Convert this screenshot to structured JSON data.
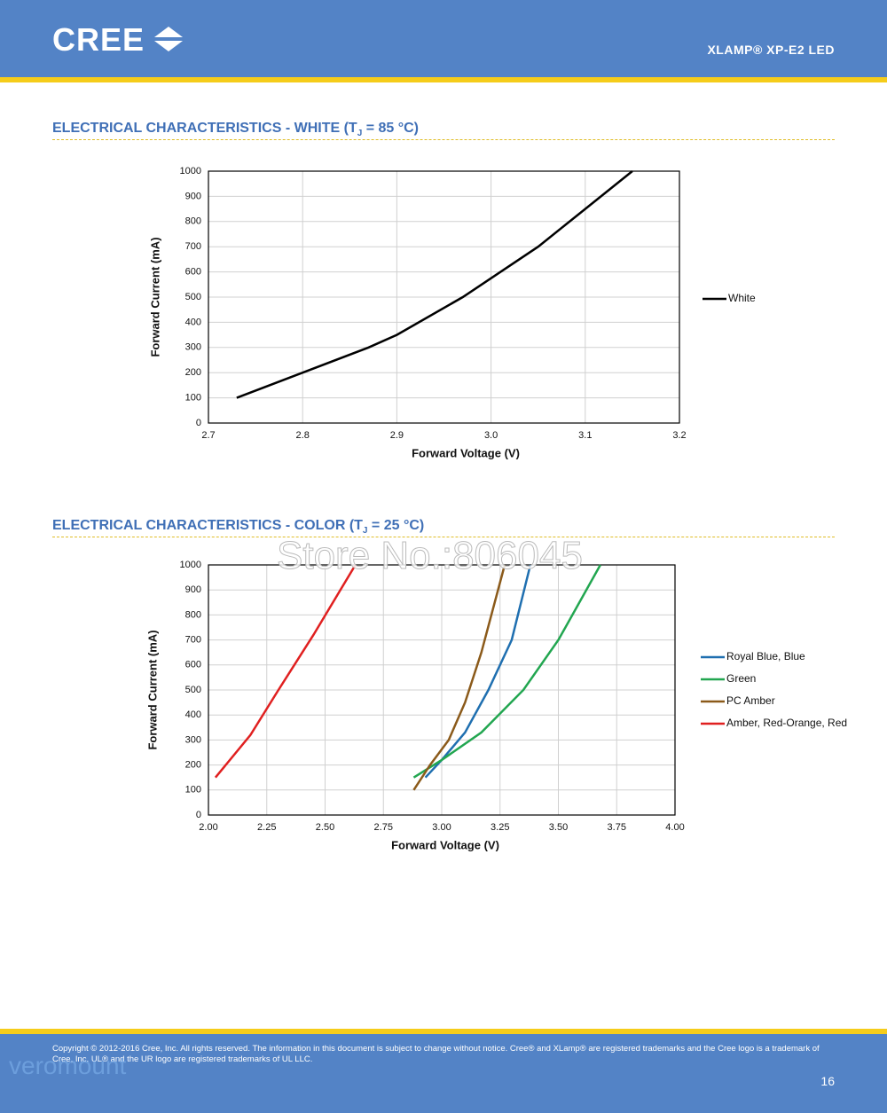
{
  "header": {
    "logo": "CREE",
    "product": "XLAMP® XP-E2 LED"
  },
  "chart_data": [
    {
      "type": "line",
      "title": "ELECTRICAL CHARACTERISTICS - WHITE (T",
      "title_subscript": "J",
      "title_suffix": " = 85 °C)",
      "x_label": "Forward Voltage (V)",
      "y_label": "Forward Current (mA)",
      "xlim": [
        2.7,
        3.2
      ],
      "xticks": [
        2.7,
        2.8,
        2.9,
        {
          "value": 3,
          "label": "3.0"
        },
        3.1,
        3.2
      ],
      "ylim": [
        0,
        1000
      ],
      "yticks": [
        0,
        100,
        200,
        300,
        400,
        500,
        600,
        700,
        800,
        900,
        1000
      ],
      "grid": true,
      "legend": "right",
      "series": [
        {
          "name": "White",
          "color": "#000000",
          "x": [
            2.73,
            2.8,
            2.87,
            2.9,
            2.97,
            3.05,
            3.1,
            3.15
          ],
          "values": [
            100,
            200,
            300,
            350,
            500,
            700,
            850,
            1000
          ]
        }
      ]
    },
    {
      "type": "line",
      "title": "ELECTRICAL CHARACTERISTICS - COLOR (T",
      "title_subscript": "J",
      "title_suffix": " = 25 °C)",
      "x_label": "Forward Voltage (V)",
      "y_label": "Forward Current (mA)",
      "xlim": [
        2,
        4
      ],
      "xticks": [
        {
          "value": 2,
          "label": "2.00"
        },
        {
          "value": 2.25,
          "label": "2.25"
        },
        {
          "value": 2.5,
          "label": "2.50"
        },
        {
          "value": 2.75,
          "label": "2.75"
        },
        {
          "value": 3,
          "label": "3.00"
        },
        {
          "value": 3.25,
          "label": "3.25"
        },
        {
          "value": 3.5,
          "label": "3.50"
        },
        {
          "value": 3.75,
          "label": "3.75"
        },
        {
          "value": 4,
          "label": "4.00"
        }
      ],
      "ylim": [
        0,
        1000
      ],
      "yticks": [
        0,
        100,
        200,
        300,
        400,
        500,
        600,
        700,
        800,
        900,
        1000
      ],
      "grid": true,
      "legend": "right",
      "series": [
        {
          "name": "Royal Blue, Blue",
          "color": "#1f6fb0",
          "x": [
            2.93,
            3.0,
            3.1,
            3.2,
            3.3,
            3.38
          ],
          "values": [
            150,
            220,
            330,
            500,
            700,
            1000
          ]
        },
        {
          "name": "Green",
          "color": "#22a650",
          "x": [
            2.88,
            3.0,
            3.17,
            3.35,
            3.5,
            3.68
          ],
          "values": [
            150,
            220,
            330,
            500,
            700,
            1000
          ]
        },
        {
          "name": "PC Amber",
          "color": "#8b5a1a",
          "x": [
            2.88,
            2.95,
            3.03,
            3.1,
            3.17,
            3.27
          ],
          "values": [
            100,
            200,
            300,
            450,
            650,
            1000
          ]
        },
        {
          "name": "Amber, Red-Orange, Red",
          "color": "#e02020",
          "x": [
            2.03,
            2.18,
            2.3,
            2.45,
            2.63
          ],
          "values": [
            150,
            320,
            500,
            720,
            1000
          ]
        }
      ]
    }
  ],
  "watermarks": [
    "Store No.:806045",
    "veromount"
  ],
  "footer": {
    "copyright_1": "Copyright © 2012-2016 Cree, Inc. All rights reserved. The information in this document is subject to change without notice. Cree® and XLamp® are registered trademarks and the Cree logo is a trademark of",
    "copyright_2": "Cree, Inc. UL® and the UR logo are registered trademarks of UL LLC.",
    "page": "16"
  }
}
